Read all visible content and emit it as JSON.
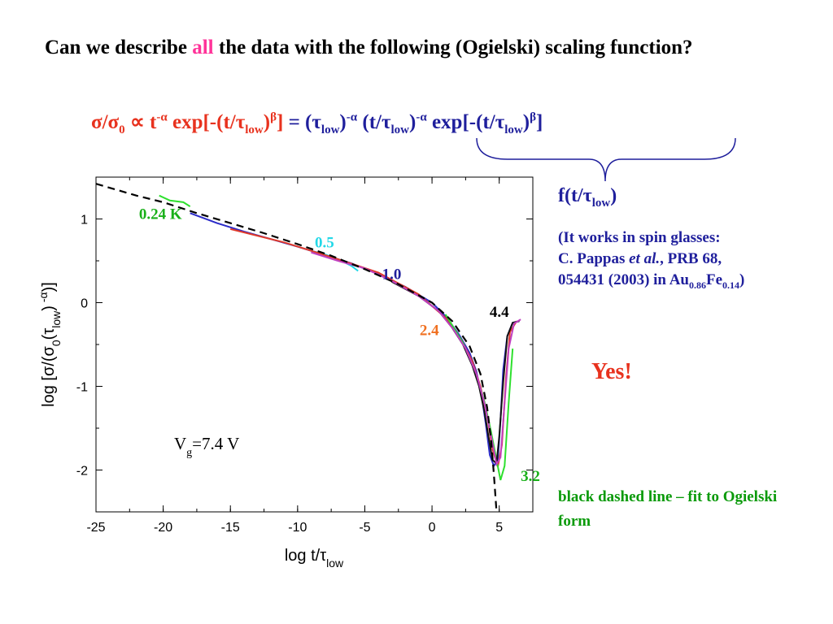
{
  "title": {
    "part1": "Can we describe ",
    "highlight": "all",
    "part2": " the data with the following (Ogielski) scaling function?"
  },
  "formula": {
    "lhs_sigma": "σ/σ",
    "lhs_sub0": "0",
    "lhs_prop": " ∝ t",
    "lhs_exp1": "-α",
    "lhs_exp_text": " exp[-(t/τ",
    "lhs_low": "low",
    "lhs_close": ")",
    "lhs_beta": "β",
    "lhs_bracket": "]",
    "eq": " = (τ",
    "rhs_low1": "low",
    "rhs_close1": ")",
    "rhs_exp1": "-α",
    "rhs_part2": " (t/τ",
    "rhs_low2": "low",
    "rhs_close2": ")",
    "rhs_exp2": "-α",
    "rhs_part3": " exp[-(t/τ",
    "rhs_low3": "low",
    "rhs_close3": ")",
    "rhs_beta": "β",
    "rhs_bracket": "]"
  },
  "f_label": {
    "main": "f(t/τ",
    "sub": "low",
    "close": ")"
  },
  "note": {
    "line1": "(It works in spin glasses:",
    "line2_a": "C. Pappas ",
    "line2_italic": "et al.",
    "line2_b": ", PRB 68,",
    "line3_a": "054431 (2003) in Au",
    "line3_sub1": "0.86",
    "line3_b": "Fe",
    "line3_sub2": "0.14",
    "line3_c": ")"
  },
  "yes": "Yes!",
  "fit_note": "black dashed line – fit to Ogielski form",
  "colors": {
    "title": "#000000",
    "highlight": "#ff3399",
    "formula_red": "#e8321e",
    "formula_blue": "#1f1f9c",
    "note_blue": "#1f1f9c",
    "yes_red": "#e8321e",
    "fit_green": "#0a9a0a"
  },
  "chart_data": {
    "type": "line",
    "xlabel": "log t/τ_low",
    "ylabel": "log [σ/(σ0(τlow)^-α)]",
    "xlim": [
      -25,
      7.5
    ],
    "ylim": [
      -2.5,
      1.5
    ],
    "x_ticks": [
      -25,
      -20,
      -15,
      -10,
      -5,
      0,
      5
    ],
    "y_ticks": [
      -2,
      -1,
      0,
      1
    ],
    "annotation": "Vg=7.4 V",
    "series": [
      {
        "name": "0.24 K",
        "label_x": -20.2,
        "label_y": 1.0,
        "label_color": "#19b019",
        "color": "#2ee02e",
        "x": [
          -20.3,
          -19.5,
          -18.5,
          -18.0
        ],
        "y": [
          1.28,
          1.22,
          1.2,
          1.15
        ]
      },
      {
        "name": "0.5",
        "label_x": -8.0,
        "label_y": 0.66,
        "label_color": "#23d8e8",
        "color": "#23d8e8",
        "x": [
          -9.0,
          -8.0,
          -7.0,
          -6.0,
          -5.5
        ],
        "y": [
          0.62,
          0.58,
          0.52,
          0.44,
          0.38
        ]
      },
      {
        "name": "1.0",
        "label_x": -3.0,
        "label_y": 0.28,
        "label_color": "#1f1f9c",
        "color": "#2b2bc8",
        "x": [
          -18.0,
          -16.0,
          -14.0,
          -12.0,
          -10.0,
          -8.0,
          -6.0,
          -4.0,
          -2.0,
          0.0,
          1.0,
          2.0,
          2.8,
          3.3,
          3.7,
          4.0,
          4.3,
          4.6,
          4.9,
          5.1,
          5.3,
          5.6,
          6.0,
          6.5
        ],
        "y": [
          1.07,
          0.95,
          0.85,
          0.76,
          0.67,
          0.57,
          0.47,
          0.34,
          0.19,
          0.0,
          -0.16,
          -0.38,
          -0.6,
          -0.82,
          -1.12,
          -1.45,
          -1.82,
          -1.95,
          -1.88,
          -1.4,
          -0.8,
          -0.4,
          -0.24,
          -0.22
        ]
      },
      {
        "name": "2.4",
        "label_x": -0.2,
        "label_y": -0.39,
        "label_color": "#f07020",
        "color": "#e03a2a",
        "x": [
          -15.0,
          -13.0,
          -11.0,
          -9.0,
          -7.0,
          -4.0,
          -1.0,
          1.0,
          2.2,
          3.0,
          3.6,
          4.1,
          4.5,
          4.9,
          5.2,
          5.5,
          5.8,
          6.3
        ],
        "y": [
          0.88,
          0.8,
          0.72,
          0.62,
          0.52,
          0.36,
          0.1,
          -0.18,
          -0.45,
          -0.7,
          -1.0,
          -1.35,
          -1.75,
          -1.96,
          -1.7,
          -0.9,
          -0.35,
          -0.22
        ]
      },
      {
        "name": "3.2",
        "label_x": 6.6,
        "label_y": -2.13,
        "label_color": "#19b019",
        "color": "#2ee02e",
        "x": [
          1.0,
          2.3,
          3.2,
          3.9,
          4.4,
          4.8,
          5.1,
          5.4,
          5.7,
          6.0
        ],
        "y": [
          -0.14,
          -0.48,
          -0.82,
          -1.18,
          -1.55,
          -1.88,
          -2.12,
          -1.95,
          -1.2,
          -0.55
        ]
      },
      {
        "name": "4.4",
        "label_x": 5.0,
        "label_y": -0.17,
        "label_color": "#000000",
        "color": "#111111",
        "x": [
          -3.0,
          -1.0,
          0.5,
          1.5,
          2.3,
          3.0,
          3.5,
          3.9,
          4.2,
          4.5,
          4.8,
          5.0,
          5.3,
          5.6,
          6.0,
          6.5
        ],
        "y": [
          0.25,
          0.08,
          -0.1,
          -0.3,
          -0.5,
          -0.75,
          -1.0,
          -1.3,
          -1.6,
          -1.88,
          -1.92,
          -1.6,
          -0.95,
          -0.4,
          -0.24,
          -0.22
        ]
      },
      {
        "name": "",
        "color": "#c040c0",
        "x": [
          -9.0,
          -7.0,
          -5.0,
          -3.0,
          -1.0,
          0.5,
          1.6,
          2.5,
          3.3,
          3.9,
          4.4,
          4.8,
          5.1,
          5.4,
          5.7,
          6.1,
          6.6
        ],
        "y": [
          0.6,
          0.5,
          0.41,
          0.26,
          0.08,
          -0.1,
          -0.32,
          -0.55,
          -0.85,
          -1.2,
          -1.6,
          -1.93,
          -1.85,
          -1.2,
          -0.55,
          -0.25,
          -0.2
        ]
      }
    ],
    "fit": {
      "name": "fit",
      "style": "black dashed",
      "x": [
        -25,
        -22,
        -20,
        -17.5,
        -15,
        -12.5,
        -10,
        -7.5,
        -5,
        -2.5,
        0,
        1.5,
        2.8,
        3.6,
        4.1,
        4.4,
        4.6,
        4.8
      ],
      "y": [
        1.42,
        1.28,
        1.2,
        1.07,
        0.95,
        0.83,
        0.7,
        0.56,
        0.4,
        0.22,
        0.0,
        -0.22,
        -0.52,
        -0.85,
        -1.25,
        -1.65,
        -2.05,
        -2.5
      ]
    }
  }
}
